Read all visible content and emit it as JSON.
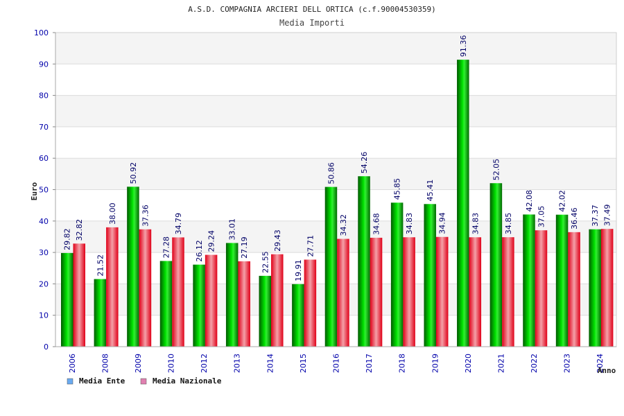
{
  "chart_data": {
    "type": "bar",
    "title": "A.S.D. COMPAGNIA ARCIERI DELL ORTICA (c.f.90004530359)",
    "subtitle": "Media Importi",
    "xlabel": "Anno",
    "ylabel": "Euro",
    "ylim": [
      0,
      100
    ],
    "yticks": [
      0,
      10,
      20,
      30,
      40,
      50,
      60,
      70,
      80,
      90,
      100
    ],
    "grid": true,
    "legend_position": "bottom-left",
    "categories": [
      "2006",
      "2008",
      "2009",
      "2010",
      "2012",
      "2013",
      "2014",
      "2015",
      "2016",
      "2017",
      "2018",
      "2019",
      "2020",
      "2021",
      "2022",
      "2023",
      "2024"
    ],
    "series": [
      {
        "name": "Media Ente",
        "color": "#00b000",
        "legend_color": "#6aaaf0",
        "values": [
          29.82,
          21.52,
          50.92,
          27.28,
          26.12,
          33.01,
          22.55,
          19.91,
          50.86,
          54.26,
          45.85,
          45.41,
          91.36,
          52.05,
          42.08,
          42.02,
          37.37
        ],
        "labels": [
          "29.82",
          "21.52",
          "50.92",
          "27.28",
          "26.12",
          "33.01",
          "22.55",
          "19.91",
          "50.86",
          "54.26",
          "45.85",
          "45.41",
          "91.36",
          "52.05",
          "42.08",
          "42.02",
          "37.37"
        ]
      },
      {
        "name": "Media Nazionale",
        "color": "#e02030",
        "legend_color": "#e080b0",
        "values": [
          32.82,
          38.0,
          37.36,
          34.79,
          29.24,
          27.19,
          29.43,
          27.71,
          34.32,
          34.68,
          34.83,
          34.94,
          34.83,
          34.85,
          37.05,
          36.46,
          37.49
        ],
        "labels": [
          "32.82",
          "38.00",
          "37.36",
          "34.79",
          "29.24",
          "27.19",
          "29.43",
          "27.71",
          "34.32",
          "34.68",
          "34.83",
          "34.94",
          "34.83",
          "34.85",
          "37.05",
          "36.46",
          "37.49"
        ]
      }
    ]
  }
}
